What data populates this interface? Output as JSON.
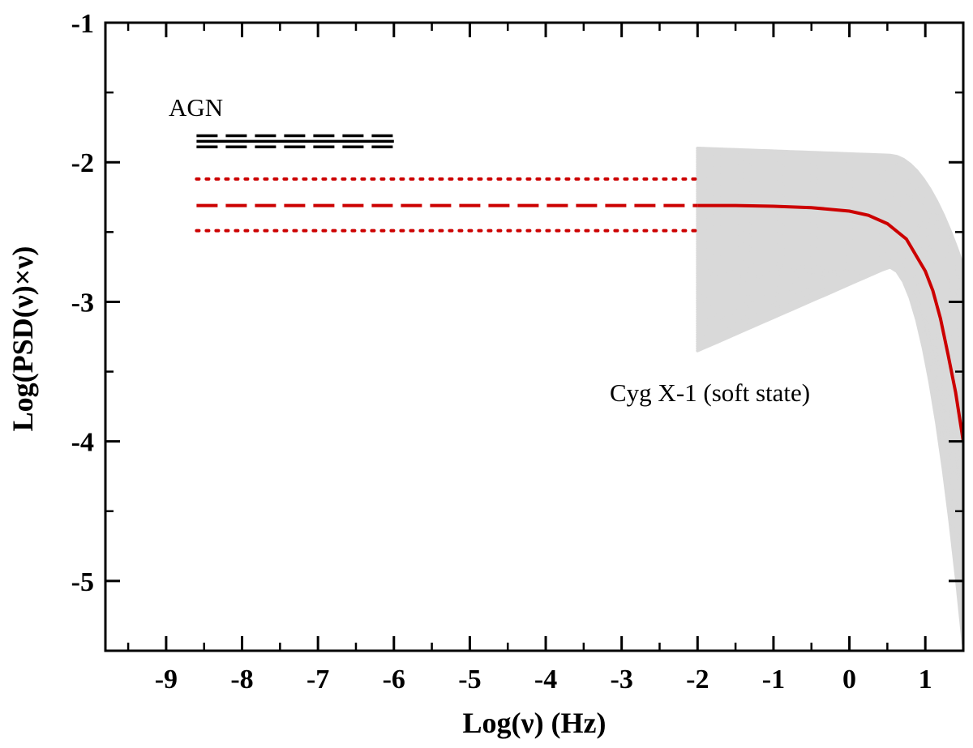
{
  "chart_data": {
    "type": "line",
    "title": "",
    "xlabel": "Log(ν) (Hz)",
    "ylabel": "Log(PSD(ν)×ν)",
    "xlim": [
      -9.8,
      1.5
    ],
    "ylim": [
      -5.5,
      -1.0
    ],
    "x_ticks": [
      -9,
      -8,
      -7,
      -6,
      -5,
      -4,
      -3,
      -2,
      -1,
      0,
      1
    ],
    "y_ticks": [
      -1,
      -2,
      -3,
      -4,
      -5
    ],
    "grid": false,
    "annotations": [
      {
        "text": "AGN",
        "x": -8.5,
        "y": -1.57
      },
      {
        "text": "Cyg X-1 (soft state)",
        "x": -3.0,
        "y": -3.72
      }
    ],
    "series": [
      {
        "style": "solid",
        "color": "#000000",
        "x": [
          -8.6,
          -6.0
        ],
        "y": [
          -1.85,
          -1.85
        ]
      },
      {
        "style": "dashed",
        "color": "#000000",
        "x": [
          -8.6,
          -6.0
        ],
        "y": [
          -1.81,
          -1.81
        ]
      },
      {
        "style": "dashed",
        "color": "#000000",
        "x": [
          -8.6,
          -6.0
        ],
        "y": [
          -1.89,
          -1.89
        ]
      },
      {
        "style": "dashed",
        "color": "#cc0000",
        "x": [
          -8.6,
          -2.0
        ],
        "y": [
          -2.31,
          -2.31
        ]
      },
      {
        "style": "dotted",
        "color": "#cc0000",
        "x": [
          -8.6,
          -2.0
        ],
        "y": [
          -2.12,
          -2.12
        ]
      },
      {
        "style": "dotted",
        "color": "#cc0000",
        "x": [
          -8.6,
          -2.0
        ],
        "y": [
          -2.49,
          -2.49
        ]
      },
      {
        "style": "solid",
        "color": "#cc0000",
        "x": [
          -2.0,
          -1.5,
          -1.0,
          -0.5,
          0.0,
          0.25,
          0.5,
          0.75,
          1.0,
          1.1,
          1.2,
          1.3,
          1.4,
          1.5
        ],
        "y": [
          -2.31,
          -2.31,
          -2.315,
          -2.325,
          -2.35,
          -2.38,
          -2.44,
          -2.55,
          -2.78,
          -2.92,
          -3.12,
          -3.38,
          -3.65,
          -4.0
        ]
      },
      {
        "style": "band",
        "color": "#d9d9d9",
        "x": [
          -2.0,
          1.5
        ],
        "y_range_start": [
          -3.35,
          -1.9
        ],
        "y_range_end": [
          -5.45,
          -2.75
        ]
      }
    ]
  }
}
